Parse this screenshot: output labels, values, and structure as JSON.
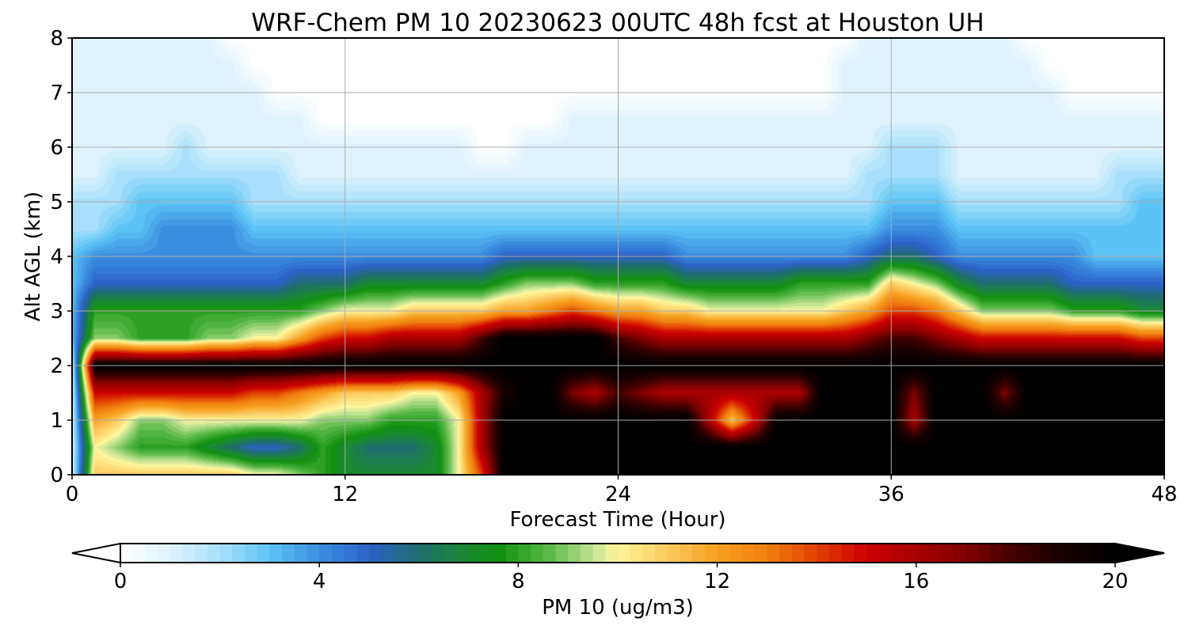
{
  "chart_data": {
    "type": "heatmap",
    "title": "WRF-Chem PM 10  20230623 00UTC 48h fcst at Houston UH",
    "xlabel": "Forecast Time (Hour)",
    "ylabel": "Alt AGL (km)",
    "xlim": [
      0,
      48
    ],
    "ylim": [
      0,
      8
    ],
    "xticks": [
      0,
      12,
      24,
      36,
      48
    ],
    "yticks": [
      0,
      1,
      2,
      3,
      4,
      5,
      6,
      7,
      8
    ],
    "grid": true,
    "x": [
      0,
      1,
      2,
      3,
      4,
      5,
      6,
      7,
      8,
      9,
      10,
      11,
      12,
      13,
      14,
      15,
      16,
      17,
      18,
      19,
      20,
      21,
      22,
      23,
      24,
      25,
      26,
      27,
      28,
      29,
      30,
      31,
      32,
      33,
      34,
      35,
      36,
      37,
      38,
      39,
      40,
      41,
      42,
      43,
      44,
      45,
      46,
      47,
      48
    ],
    "y": [
      0,
      0.5,
      1,
      1.5,
      2,
      2.5,
      3,
      3.5,
      4,
      4.5,
      5,
      5.5,
      6,
      6.5,
      7,
      7.5,
      8
    ],
    "z": [
      [
        1,
        11,
        11,
        11,
        11,
        11,
        11,
        11,
        10,
        10,
        9,
        8,
        7,
        7,
        7,
        7,
        7,
        10,
        14,
        20,
        20,
        20,
        20,
        20,
        20,
        20,
        20,
        20,
        20,
        20,
        20,
        20,
        20,
        20,
        20,
        20,
        20,
        20,
        20,
        20,
        20,
        20,
        20,
        20,
        20,
        20,
        20,
        20,
        20
      ],
      [
        1,
        10,
        9,
        8,
        8,
        8,
        7,
        6,
        5,
        5,
        6,
        8,
        7,
        6,
        6,
        6,
        7,
        10,
        16,
        20,
        20,
        20,
        20,
        20,
        20,
        20,
        20,
        20,
        20,
        20,
        20,
        20,
        20,
        20,
        20,
        20,
        20,
        20,
        20,
        20,
        20,
        20,
        20,
        20,
        20,
        20,
        20,
        20,
        20
      ],
      [
        1,
        12,
        11,
        9,
        9,
        10,
        10,
        10,
        10,
        10,
        10,
        9,
        9,
        9,
        8,
        8,
        8,
        10,
        16,
        20,
        20,
        20,
        20,
        20,
        20,
        20,
        20,
        20,
        16,
        11,
        15,
        20,
        20,
        20,
        20,
        20,
        20,
        16,
        20,
        20,
        20,
        20,
        20,
        20,
        20,
        20,
        20,
        20,
        20
      ],
      [
        1,
        15,
        15,
        15,
        15,
        15,
        15,
        15,
        14,
        14,
        13,
        12,
        11,
        11,
        11,
        10,
        10,
        12,
        16,
        19,
        20,
        20,
        17,
        16,
        18,
        17,
        16,
        16,
        16,
        16,
        16,
        16,
        16,
        20,
        20,
        20,
        20,
        17,
        20,
        20,
        20,
        17,
        20,
        20,
        20,
        20,
        20,
        20,
        20
      ],
      [
        1,
        20,
        20,
        20,
        20,
        20,
        20,
        20,
        20,
        20,
        20,
        20,
        20,
        20,
        20,
        20,
        20,
        20,
        20,
        20,
        20,
        20,
        20,
        20,
        20,
        20,
        20,
        20,
        20,
        20,
        20,
        20,
        20,
        20,
        20,
        20,
        20,
        20,
        20,
        20,
        20,
        20,
        20,
        20,
        20,
        20,
        20,
        20,
        20
      ],
      [
        3,
        9,
        9,
        8,
        8,
        8,
        9,
        9,
        10,
        10,
        12,
        14,
        15,
        15,
        16,
        16,
        16,
        16,
        18,
        20,
        20,
        20,
        20,
        20,
        18,
        17,
        16,
        16,
        16,
        16,
        16,
        16,
        16,
        16,
        16,
        17,
        18,
        18,
        17,
        16,
        15,
        15,
        15,
        15,
        15,
        15,
        15,
        14,
        14
      ],
      [
        3,
        8,
        8,
        8,
        8,
        8,
        8,
        8,
        8,
        8,
        8,
        9,
        10,
        10,
        10,
        11,
        11,
        11,
        11,
        12,
        12,
        13,
        14,
        13,
        12,
        12,
        11,
        11,
        10,
        10,
        10,
        10,
        10,
        10,
        11,
        12,
        14,
        14,
        13,
        11,
        9,
        9,
        9,
        9,
        8,
        8,
        8,
        7,
        7
      ],
      [
        3,
        5,
        5,
        5,
        5,
        5,
        5,
        5,
        5,
        5,
        6,
        6,
        6,
        7,
        7,
        7,
        7,
        7,
        7,
        8,
        9,
        9,
        9,
        8,
        8,
        8,
        8,
        7,
        7,
        7,
        7,
        7,
        8,
        8,
        8,
        8,
        11,
        10,
        9,
        7,
        6,
        6,
        6,
        6,
        5,
        5,
        5,
        5,
        5
      ],
      [
        3,
        4,
        4,
        4,
        4,
        4,
        4,
        4,
        4,
        4,
        4,
        4,
        4,
        4,
        4,
        4,
        4,
        4,
        4,
        5,
        5,
        5,
        5,
        5,
        5,
        5,
        5,
        4,
        4,
        4,
        4,
        4,
        4,
        4,
        4,
        5,
        6,
        6,
        5,
        4,
        4,
        4,
        4,
        4,
        4,
        3,
        3,
        3,
        3
      ],
      [
        2,
        2,
        3,
        3,
        4,
        4,
        4,
        4,
        3,
        3,
        3,
        3,
        3,
        3,
        3,
        3,
        3,
        3,
        3,
        3,
        3,
        3,
        3,
        3,
        3,
        3,
        3,
        3,
        3,
        3,
        3,
        3,
        3,
        3,
        3,
        3,
        4,
        4,
        4,
        3,
        3,
        3,
        3,
        3,
        3,
        3,
        3,
        3,
        3
      ],
      [
        2,
        2,
        2,
        3,
        3,
        3,
        3,
        3,
        2,
        2,
        2,
        2,
        2,
        2,
        2,
        2,
        2,
        2,
        2,
        2,
        2,
        2,
        2,
        2,
        2,
        2,
        2,
        2,
        2,
        2,
        2,
        2,
        2,
        2,
        2,
        2,
        3,
        3,
        3,
        2,
        2,
        2,
        2,
        2,
        2,
        2,
        2,
        3,
        3
      ],
      [
        1,
        1,
        2,
        2,
        2,
        2,
        2,
        2,
        2,
        2,
        1,
        1,
        1,
        1,
        1,
        1,
        1,
        1,
        1,
        1,
        1,
        1,
        1,
        1,
        1,
        1,
        1,
        1,
        1,
        1,
        1,
        1,
        1,
        1,
        1,
        2,
        2,
        2,
        2,
        1,
        1,
        1,
        1,
        1,
        1,
        1,
        2,
        2,
        2
      ],
      [
        1,
        1,
        1,
        1,
        1,
        2,
        1,
        1,
        1,
        1,
        1,
        1,
        1,
        1,
        1,
        1,
        1,
        1,
        0,
        0,
        1,
        1,
        1,
        1,
        1,
        1,
        1,
        1,
        1,
        1,
        1,
        1,
        1,
        1,
        1,
        1,
        2,
        2,
        2,
        1,
        1,
        1,
        1,
        1,
        1,
        1,
        1,
        1,
        1
      ],
      [
        1,
        1,
        1,
        1,
        1,
        1,
        1,
        1,
        1,
        1,
        1,
        0,
        0,
        0,
        0,
        0,
        0,
        0,
        0,
        0,
        0,
        0,
        1,
        1,
        1,
        1,
        1,
        1,
        1,
        1,
        1,
        1,
        1,
        1,
        1,
        1,
        1,
        1,
        1,
        1,
        1,
        1,
        1,
        1,
        1,
        1,
        1,
        1,
        1
      ],
      [
        1,
        1,
        1,
        1,
        1,
        1,
        1,
        1,
        1,
        0,
        0,
        0,
        0,
        0,
        0,
        0,
        0,
        0,
        0,
        0,
        0,
        0,
        0,
        0,
        0,
        0,
        0,
        0,
        0,
        0,
        0,
        0,
        0,
        0,
        1,
        1,
        1,
        1,
        1,
        1,
        1,
        1,
        1,
        1,
        0,
        0,
        0,
        0,
        0
      ],
      [
        1,
        1,
        1,
        1,
        1,
        1,
        1,
        1,
        0,
        0,
        0,
        0,
        0,
        0,
        0,
        0,
        0,
        0,
        0,
        0,
        0,
        0,
        0,
        0,
        0,
        0,
        0,
        0,
        0,
        0,
        0,
        0,
        0,
        0,
        1,
        1,
        1,
        1,
        1,
        1,
        1,
        1,
        1,
        0,
        0,
        0,
        0,
        0,
        0
      ],
      [
        1,
        1,
        1,
        1,
        1,
        1,
        1,
        0,
        0,
        0,
        0,
        0,
        0,
        0,
        0,
        0,
        0,
        0,
        0,
        0,
        0,
        0,
        0,
        0,
        0,
        0,
        0,
        0,
        0,
        0,
        0,
        0,
        0,
        0,
        0,
        1,
        1,
        1,
        1,
        1,
        1,
        1,
        0,
        0,
        0,
        0,
        0,
        0,
        0
      ]
    ],
    "colorbar": {
      "label": "PM 10  (ug/m3)",
      "range": [
        0,
        20
      ],
      "ticks": [
        0,
        4,
        8,
        12,
        16,
        20
      ],
      "extend": "both",
      "orientation": "horizontal",
      "placement": "bottom",
      "colormap": [
        {
          "v": 0,
          "color": "#ffffff"
        },
        {
          "v": 1,
          "color": "#dff3fd"
        },
        {
          "v": 2,
          "color": "#a8e0fb"
        },
        {
          "v": 3,
          "color": "#5cc4f5"
        },
        {
          "v": 4,
          "color": "#3a8ee0"
        },
        {
          "v": 5,
          "color": "#2c62c8"
        },
        {
          "v": 6,
          "color": "#1f6d6d"
        },
        {
          "v": 7,
          "color": "#1a8a30"
        },
        {
          "v": 7.6,
          "color": "#109010"
        },
        {
          "v": 8.6,
          "color": "#58b848"
        },
        {
          "v": 9.6,
          "color": "#cfe89a"
        },
        {
          "v": 10,
          "color": "#fff59a"
        },
        {
          "v": 11,
          "color": "#fbcb60"
        },
        {
          "v": 12,
          "color": "#f7a020"
        },
        {
          "v": 13,
          "color": "#f08010"
        },
        {
          "v": 14,
          "color": "#e04000"
        },
        {
          "v": 15,
          "color": "#cc0000"
        },
        {
          "v": 16,
          "color": "#a80000"
        },
        {
          "v": 17,
          "color": "#800000"
        },
        {
          "v": 18,
          "color": "#400000"
        },
        {
          "v": 19,
          "color": "#150000"
        },
        {
          "v": 20,
          "color": "#000000"
        }
      ]
    }
  }
}
